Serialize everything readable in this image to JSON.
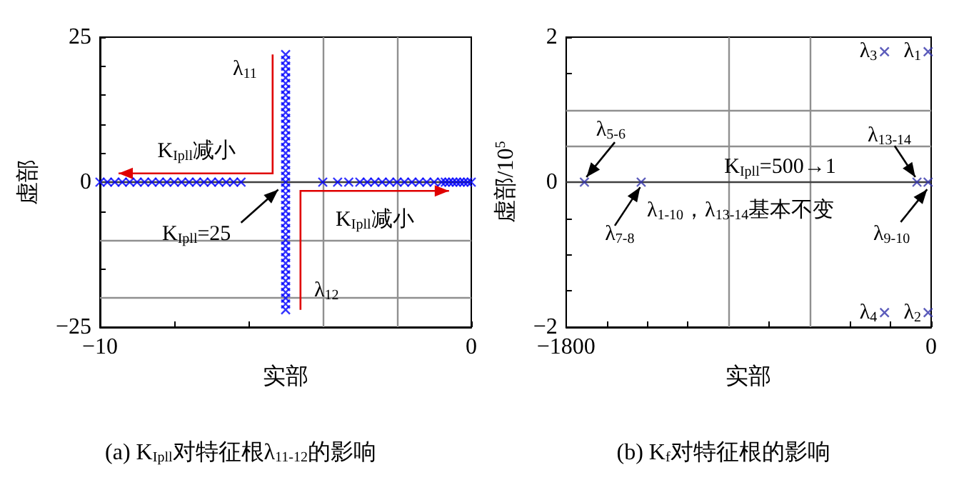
{
  "chart_data": [
    {
      "type": "scatter",
      "title": "(a) K$_{Ipll}$对特征根λ$_{11-12}$的影响",
      "xlabel": "实部",
      "ylabel": "虚部",
      "marker": "cross",
      "grid": false,
      "xlim": [
        -10,
        0
      ],
      "xticks": [
        -10,
        {
          "value": -8,
          "label": null
        },
        {
          "value": -6,
          "label": null
        },
        {
          "value": -4,
          "label": null
        },
        {
          "value": -2,
          "label": null
        },
        0
      ],
      "ylim": [
        -25,
        25
      ],
      "yticks": [
        -25,
        {
          "value": -20,
          "label": null
        },
        {
          "value": -15,
          "label": null
        },
        {
          "value": -10,
          "label": null
        },
        {
          "value": -5,
          "label": null
        },
        0,
        {
          "value": 5,
          "label": null
        },
        {
          "value": 10,
          "label": null
        },
        {
          "value": 15,
          "label": null
        },
        {
          "value": 20,
          "label": null
        },
        25
      ],
      "series": [
        {
          "color": "#0000ff",
          "x": [
            -10,
            -9.8,
            -9.6,
            -9.4,
            -9.2,
            -9,
            -8.8,
            -8.6,
            -8.4,
            -8.2,
            -8,
            -7.8,
            -7.6,
            -7.4,
            -7.2,
            -7,
            -6.8,
            -6.6,
            -6.4,
            -6.2,
            -4,
            -3.6,
            -3.3,
            -3,
            -2.8,
            -2.6,
            -2.4,
            -2.2,
            -2,
            -1.8,
            -1.6,
            -1.4,
            -1.2,
            -1,
            -0.8,
            -0.7,
            -0.6,
            -0.5,
            -0.4,
            -0.3,
            -0.2,
            -0.1,
            0,
            -5,
            -5,
            -5,
            -5,
            -5,
            -5,
            -5,
            -5,
            -5,
            -5,
            -5,
            -5,
            -5,
            -5,
            -5,
            -5,
            -5,
            -5,
            -5,
            -5,
            -5,
            -5,
            -5,
            -5,
            -5,
            -5,
            -5,
            -5,
            -5,
            -5,
            -5,
            -5,
            -5,
            -5,
            -5,
            -5,
            -5,
            -5,
            -5,
            -5,
            -5,
            -5,
            -5,
            -5,
            -5
          ],
          "values": [
            0,
            0,
            0,
            0,
            0,
            0,
            0,
            0,
            0,
            0,
            0,
            0,
            0,
            0,
            0,
            0,
            0,
            0,
            0,
            0,
            0,
            0,
            0,
            0,
            0,
            0,
            0,
            0,
            0,
            0,
            0,
            0,
            0,
            0,
            0,
            0,
            0,
            0,
            0,
            0,
            0,
            0,
            0,
            -22,
            -21,
            -20,
            -19,
            -18,
            -17,
            -16,
            -15,
            -14,
            -13,
            -12,
            -11,
            -10,
            -9,
            -8,
            -7,
            -6,
            -5,
            -4,
            -3,
            -2,
            -1,
            0,
            1,
            2,
            3,
            4,
            5,
            6,
            7,
            8,
            9,
            10,
            11,
            12,
            13,
            14,
            15,
            16,
            17,
            18,
            19,
            20,
            21,
            22
          ]
        }
      ],
      "ref_lines": [
        {
          "axis": "x",
          "value": -4,
          "color": "#909090"
        },
        {
          "axis": "x",
          "value": -2,
          "color": "#909090"
        },
        {
          "axis": "y",
          "value": -10,
          "color": "#909090"
        },
        {
          "axis": "y",
          "value": -20,
          "color": "#909090"
        },
        {
          "axis": "y",
          "value": 0,
          "color": "#404040"
        }
      ],
      "annotations": [
        "λ$_{11}$",
        "K$_{Ipll}$减小",
        "K$_{Ipll}$=25",
        "K$_{Ipll}$减小",
        "λ$_{12}$"
      ]
    },
    {
      "type": "scatter",
      "title": "(b) K$_{f}$对特征根的影响",
      "xlabel": "实部",
      "ylabel": "虚部/10$^{5}$",
      "marker": "cross",
      "grid": false,
      "xlim": [
        -1800,
        0
      ],
      "xticks": [
        -1800,
        {
          "value": -1600,
          "label": null
        },
        {
          "value": -1400,
          "label": null
        },
        {
          "value": -1200,
          "label": null
        },
        {
          "value": -1000,
          "label": null
        },
        {
          "value": -800,
          "label": null
        },
        {
          "value": -600,
          "label": null
        },
        {
          "value": -400,
          "label": null
        },
        {
          "value": -200,
          "label": null
        },
        0
      ],
      "ylim": [
        -2,
        2
      ],
      "yticks": [
        -2,
        {
          "value": -1.5,
          "label": null
        },
        {
          "value": -1,
          "label": null
        },
        {
          "value": -0.5,
          "label": null
        },
        0,
        {
          "value": 0.5,
          "label": null
        },
        {
          "value": 1,
          "label": null
        },
        {
          "value": 1.5,
          "label": null
        },
        2
      ],
      "series": [
        {
          "color": "#3333aa",
          "x": [
            -1710,
            -1430,
            -70,
            -15,
            -230,
            -15,
            -230,
            -15
          ],
          "values": [
            0,
            0,
            0,
            0,
            1.8,
            1.8,
            -1.8,
            -1.8
          ]
        }
      ],
      "ref_lines": [
        {
          "axis": "x",
          "value": -1000,
          "color": "#909090"
        },
        {
          "axis": "x",
          "value": -600,
          "color": "#909090"
        },
        {
          "axis": "y",
          "value": 1,
          "color": "#909090"
        },
        {
          "axis": "y",
          "value": 0.5,
          "color": "#909090"
        },
        {
          "axis": "y",
          "value": 0,
          "color": "#404040"
        }
      ],
      "annotations": [
        "λ$_{3}$",
        "λ$_{1}$",
        "λ$_{4}$",
        "λ$_{2}$",
        "λ$_{5-6}$",
        "λ$_{13-14}$",
        "K$_{Ipll}$=500→1",
        "λ$_{1-10}$，λ$_{13-14}$基本不变",
        "λ$_{7-8}$",
        "λ$_{9-10}$"
      ]
    }
  ]
}
